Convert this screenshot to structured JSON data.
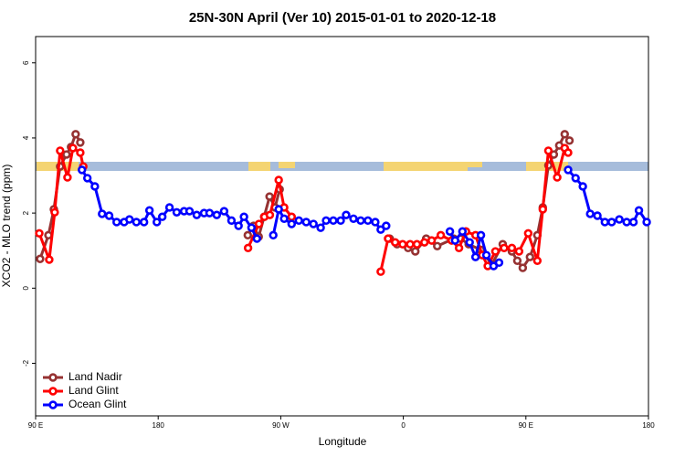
{
  "chart_data": {
    "type": "line",
    "title": "25N-30N April (Ver 10)   2015-01-01 to 2020-12-18",
    "x_label": "Longitude",
    "y_label": "XCO2 - MLO trend (ppm)",
    "xlim": [
      90,
      540
    ],
    "ylim": [
      -3.4,
      6.7
    ],
    "xticks": [
      {
        "value": 90,
        "label": "90 E"
      },
      {
        "value": 180,
        "label": "180"
      },
      {
        "value": 270,
        "label": "90 W"
      },
      {
        "value": 360,
        "label": "0"
      },
      {
        "value": 450,
        "label": "90 E"
      },
      {
        "value": 540,
        "label": "180"
      }
    ],
    "yticks": [
      -2,
      0,
      2,
      4,
      6
    ],
    "grid": false,
    "legend": "bottomleft",
    "series": [
      {
        "name": "Land Nadir",
        "color": "#963232",
        "x": [
          93.3,
          99.4,
          103.4,
          108,
          112.7,
          116,
          119.4,
          122.8,
          null,
          245.8,
          250,
          253.8,
          257.8,
          261.8,
          265.8,
          269.2,
          null,
          350,
          355.4,
          363.5,
          368.8,
          376.8,
          384.9,
          397,
          402,
          408,
          416.9,
          425,
          433,
          439.7,
          443.7,
          447.7,
          453,
          458.4,
          462.4,
          466.5,
          470.5,
          474.5,
          478.5,
          482
        ],
        "values": [
          0.78,
          1.41,
          2.1,
          3.24,
          3.56,
          3.76,
          4.1,
          3.88,
          null,
          1.41,
          1.66,
          1.37,
          1.9,
          2.44,
          2.15,
          2.63,
          null,
          1.32,
          1.17,
          1.07,
          0.98,
          1.32,
          1.12,
          1.32,
          1.32,
          1.17,
          1.02,
          0.63,
          1.17,
          0.98,
          0.73,
          0.54,
          0.83,
          1.41,
          2.15,
          3.27,
          3.56,
          3.8,
          4.1,
          3.93
        ]
      },
      {
        "name": "Land Glint",
        "color": "#ff0000",
        "x": [
          92.7,
          100,
          104,
          108,
          113.4,
          117.4,
          122.8,
          125,
          null,
          246,
          254,
          258,
          262,
          268.5,
          272.5,
          278,
          null,
          343.4,
          348.8,
          354,
          359.5,
          365,
          370,
          375.5,
          380.8,
          387.5,
          395.5,
          400.9,
          406,
          413,
          418,
          422,
          427.6,
          434,
          439.7,
          445,
          451.7,
          458.4,
          462.4,
          466.5,
          473,
          478.5,
          481
        ],
        "values": [
          1.46,
          0.76,
          2.02,
          3.66,
          2.95,
          3.73,
          3.61,
          3.24,
          null,
          1.07,
          1.71,
          1.9,
          1.95,
          2.88,
          2.15,
          1.9,
          null,
          0.44,
          1.32,
          1.22,
          1.17,
          1.17,
          1.17,
          1.22,
          1.27,
          1.41,
          1.27,
          1.07,
          1.51,
          1.41,
          0.88,
          0.59,
          0.98,
          1.07,
          1.07,
          0.98,
          1.46,
          0.73,
          2.1,
          3.66,
          2.95,
          3.73,
          3.61
        ]
      },
      {
        "name": "Ocean Glint",
        "color": "#0000ff",
        "x": [
          124,
          128,
          133.5,
          138.8,
          144,
          149.5,
          155,
          158.9,
          164,
          169.6,
          173.6,
          179,
          183,
          188.3,
          193.6,
          199,
          203,
          208.3,
          213.7,
          217.7,
          223,
          228.4,
          233.8,
          239,
          243,
          248.5,
          252.5,
          null,
          264.5,
          268.5,
          272.5,
          278,
          283.3,
          288.7,
          294,
          299.3,
          303.3,
          308.6,
          314,
          318,
          323.4,
          328.7,
          334,
          339.4,
          343.4,
          347.4,
          null,
          394.2,
          398,
          403.4,
          408.7,
          413,
          417,
          421,
          426.3,
          430.3,
          null,
          481,
          486.5,
          491.8,
          497.2,
          502.5,
          508,
          513,
          518.6,
          524,
          529,
          533,
          538.7
        ],
        "values": [
          3.15,
          2.93,
          2.71,
          1.98,
          1.93,
          1.76,
          1.76,
          1.83,
          1.76,
          1.76,
          2.07,
          1.76,
          1.9,
          2.15,
          2.02,
          2.05,
          2.05,
          1.95,
          2.0,
          2.0,
          1.95,
          2.05,
          1.8,
          1.66,
          1.9,
          1.61,
          1.32,
          null,
          1.41,
          2.1,
          1.85,
          1.71,
          1.8,
          1.76,
          1.71,
          1.61,
          1.8,
          1.8,
          1.8,
          1.95,
          1.85,
          1.8,
          1.8,
          1.76,
          1.56,
          1.66,
          null,
          1.51,
          1.27,
          1.51,
          1.22,
          0.83,
          1.41,
          0.88,
          0.59,
          0.68,
          null,
          3.15,
          2.93,
          2.71,
          1.98,
          1.93,
          1.76,
          1.76,
          1.83,
          1.76,
          1.76,
          2.07,
          1.76
        ]
      }
    ]
  }
}
